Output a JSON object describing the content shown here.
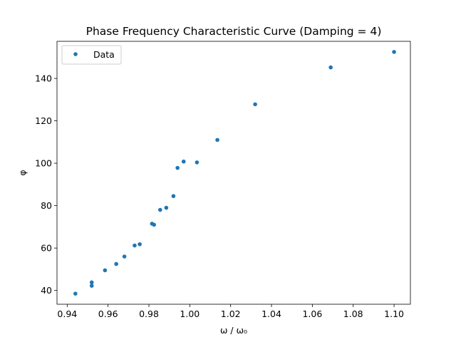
{
  "chart_data": {
    "type": "scatter",
    "title": "Phase Frequency Characteristic Curve (Damping = 4)",
    "xlabel": "ω / ω₀",
    "ylabel": "φ",
    "xlim": [
      0.935,
      1.108
    ],
    "ylim": [
      33.5,
      157.5
    ],
    "x_ticks": [
      "0.94",
      "0.96",
      "0.98",
      "1.00",
      "1.02",
      "1.04",
      "1.06",
      "1.08",
      "1.10"
    ],
    "x_tick_values": [
      0.94,
      0.96,
      0.98,
      1.0,
      1.02,
      1.04,
      1.06,
      1.08,
      1.1
    ],
    "y_ticks": [
      "40",
      "60",
      "80",
      "100",
      "120",
      "140"
    ],
    "y_tick_values": [
      40,
      60,
      80,
      100,
      120,
      140
    ],
    "grid": false,
    "legend_position": "upper-left",
    "color": "#1f77b4",
    "series": [
      {
        "name": "Data",
        "x": [
          0.944,
          0.952,
          0.952,
          0.9585,
          0.964,
          0.968,
          0.973,
          0.9755,
          0.9815,
          0.9825,
          0.9855,
          0.9885,
          0.992,
          0.994,
          0.997,
          1.0035,
          1.0135,
          1.032,
          1.069,
          1.1
        ],
        "y": [
          38.5,
          42.2,
          43.8,
          49.5,
          52.5,
          56.0,
          61.2,
          61.8,
          71.5,
          71.0,
          78.0,
          79.0,
          84.5,
          97.8,
          100.8,
          100.4,
          111.0,
          127.8,
          145.2,
          152.5
        ]
      }
    ]
  }
}
